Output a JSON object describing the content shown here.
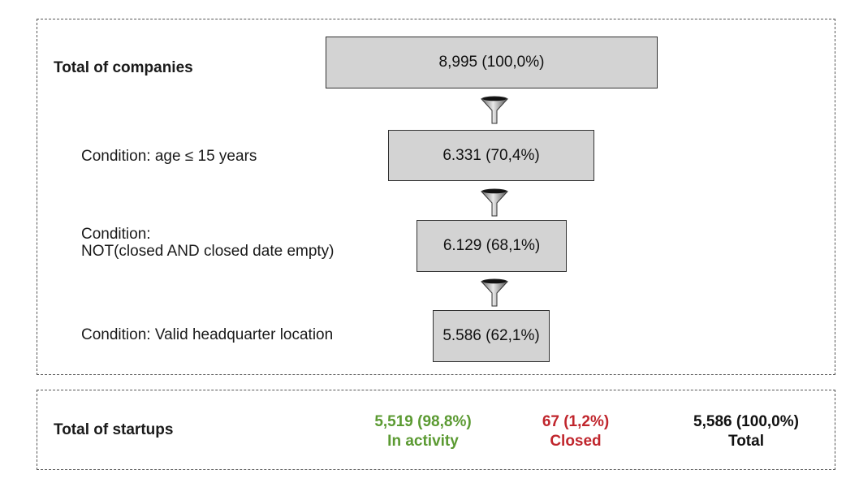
{
  "funnel": {
    "total_label": "Total of companies",
    "stages": [
      {
        "condition": "",
        "value": "8,995 (100,0%)"
      },
      {
        "condition": "Condition: age ≤ 15 years",
        "value": "6.331 (70,4%)"
      },
      {
        "condition_line1": "Condition:",
        "condition_line2": "NOT(closed AND closed date empty)",
        "value": "6.129 (68,1%)"
      },
      {
        "condition": "Condition: Valid headquarter location",
        "value": "5.586 (62,1%)"
      }
    ],
    "funnel_icon": "funnel-icon"
  },
  "summary": {
    "label": "Total of startups",
    "active": {
      "value": "5,519 (98,8%)",
      "label": "In activity",
      "color": "#5b9a32"
    },
    "closed": {
      "value": "67 (1,2%)",
      "label": "Closed",
      "color": "#c0262d"
    },
    "total": {
      "value": "5,586 (100,0%)",
      "label": "Total",
      "color": "#111111"
    }
  }
}
